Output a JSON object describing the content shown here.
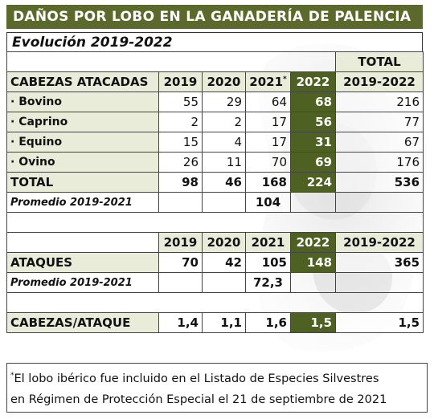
{
  "title": "DAÑOS POR LOBO EN LA GANADERÍA DE PALENCIA",
  "subtitle": "Evolución 2019-2022",
  "total_header": "TOTAL",
  "heads_table": {
    "row_header": "CABEZAS ATACADAS",
    "years": [
      "2019",
      "2020",
      "2021",
      "2022"
    ],
    "footnote_mark": "*",
    "total_col": "2019-2022",
    "rows": [
      {
        "label": "· Bovino",
        "values": [
          "55",
          "29",
          "64",
          "68"
        ],
        "total": "216"
      },
      {
        "label": "· Caprino",
        "values": [
          "2",
          "2",
          "17",
          "56"
        ],
        "total": "77"
      },
      {
        "label": "· Equino",
        "values": [
          "15",
          "4",
          "17",
          "31"
        ],
        "total": "67"
      },
      {
        "label": "· Ovino",
        "values": [
          "26",
          "11",
          "70",
          "69"
        ],
        "total": "176"
      }
    ],
    "total_row": {
      "label": "TOTAL",
      "values": [
        "98",
        "46",
        "168",
        "224"
      ],
      "total": "536"
    },
    "average_label": "Promedio 2019-2021",
    "average_value": "104"
  },
  "attacks_table": {
    "years": [
      "2019",
      "2020",
      "2021",
      "2022"
    ],
    "total_col": "2019-2022",
    "row": {
      "label": "ATAQUES",
      "values": [
        "70",
        "42",
        "105",
        "148"
      ],
      "total": "365"
    },
    "average_label": "Promedio 2019-2021",
    "average_value": "72,3"
  },
  "ratio_row": {
    "label": "CABEZAS/ATAQUE",
    "values": [
      "1,4",
      "1,1",
      "1,6",
      "1,5"
    ],
    "total": "1,5"
  },
  "note": {
    "mark": "*",
    "line1": "El lobo ibérico fue incluido en el Listado de Especies Silvestres",
    "line2": "en Régimen de Protección Especial el 21 de septiembre de 2021"
  },
  "colors": {
    "header_green": "#5b6a2c",
    "highlight_2022": "#4f6122",
    "label_bg": "#e8ecd9"
  }
}
